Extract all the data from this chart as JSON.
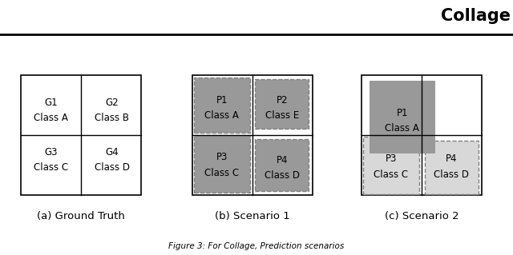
{
  "background": "#ffffff",
  "dark_gray": "#999999",
  "light_gray": "#d8d8d8",
  "border_color": "#333333",
  "caption_a": "(a) Ground Truth",
  "caption_b": "(b) Scenario 1",
  "caption_c": "(c) Scenario 2",
  "fig_caption": "Figure 3: For Collage, Prediction scenarios",
  "header": "Collage"
}
